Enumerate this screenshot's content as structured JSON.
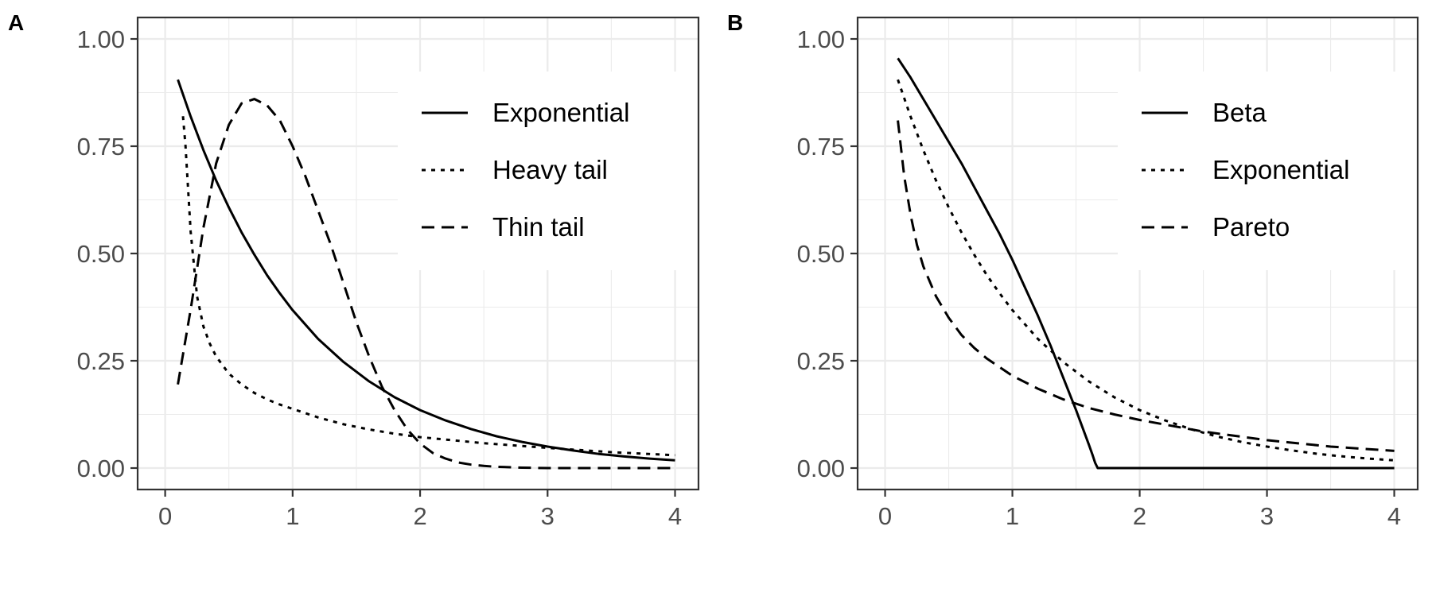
{
  "chart_data": [
    {
      "panel": "A",
      "type": "line",
      "xlim": [
        0,
        4
      ],
      "ylim": [
        0,
        1
      ],
      "x_ticks": [
        "0",
        "1",
        "2",
        "3",
        "4"
      ],
      "y_ticks": [
        "0.00",
        "0.25",
        "0.50",
        "0.75",
        "1.00"
      ],
      "grid": true,
      "legend_position": "top-right",
      "series": [
        {
          "name": "Exponential",
          "linetype": "solid",
          "x": [
            0.1,
            0.2,
            0.3,
            0.4,
            0.5,
            0.6,
            0.7,
            0.8,
            0.9,
            1.0,
            1.2,
            1.4,
            1.6,
            1.8,
            2.0,
            2.2,
            2.4,
            2.6,
            2.8,
            3.0,
            3.2,
            3.4,
            3.6,
            3.8,
            4.0
          ],
          "y": [
            0.905,
            0.819,
            0.741,
            0.67,
            0.607,
            0.549,
            0.497,
            0.449,
            0.407,
            0.368,
            0.301,
            0.247,
            0.202,
            0.165,
            0.135,
            0.111,
            0.091,
            0.074,
            0.061,
            0.05,
            0.041,
            0.033,
            0.027,
            0.022,
            0.018
          ]
        },
        {
          "name": "Heavy tail",
          "linetype": "dotted",
          "x": [
            0.14,
            0.16,
            0.2,
            0.25,
            0.3,
            0.35,
            0.4,
            0.5,
            0.6,
            0.7,
            0.8,
            0.9,
            1.0,
            1.2,
            1.4,
            1.6,
            1.8,
            2.0,
            2.5,
            3.0,
            3.5,
            4.0
          ],
          "y": [
            0.82,
            0.75,
            0.55,
            0.4,
            0.33,
            0.29,
            0.26,
            0.22,
            0.195,
            0.175,
            0.16,
            0.148,
            0.138,
            0.118,
            0.102,
            0.09,
            0.08,
            0.072,
            0.058,
            0.047,
            0.037,
            0.03
          ]
        },
        {
          "name": "Thin tail",
          "linetype": "dashed",
          "x": [
            0.1,
            0.2,
            0.3,
            0.4,
            0.5,
            0.6,
            0.7,
            0.8,
            0.9,
            1.0,
            1.1,
            1.2,
            1.3,
            1.4,
            1.5,
            1.6,
            1.7,
            1.8,
            1.9,
            2.0,
            2.1,
            2.2,
            2.3,
            2.4,
            2.5,
            2.6,
            2.8,
            3.0,
            3.5,
            4.0
          ],
          "y": [
            0.195,
            0.37,
            0.56,
            0.71,
            0.8,
            0.85,
            0.86,
            0.845,
            0.81,
            0.75,
            0.68,
            0.6,
            0.52,
            0.43,
            0.34,
            0.26,
            0.19,
            0.135,
            0.09,
            0.057,
            0.035,
            0.022,
            0.013,
            0.008,
            0.005,
            0.003,
            0.001,
            0.0,
            0.0,
            0.0
          ]
        }
      ]
    },
    {
      "panel": "B",
      "type": "line",
      "xlim": [
        0,
        4
      ],
      "ylim": [
        0,
        1
      ],
      "x_ticks": [
        "0",
        "1",
        "2",
        "3",
        "4"
      ],
      "y_ticks": [
        "0.00",
        "0.25",
        "0.50",
        "0.75",
        "1.00"
      ],
      "grid": true,
      "legend_position": "top-right",
      "series": [
        {
          "name": "Beta",
          "linetype": "solid",
          "x": [
            0.1,
            0.2,
            0.3,
            0.4,
            0.5,
            0.6,
            0.7,
            0.8,
            0.9,
            1.0,
            1.1,
            1.2,
            1.3,
            1.4,
            1.5,
            1.55,
            1.6,
            1.63,
            1.65,
            1.67,
            1.8,
            2.0,
            2.5,
            3.0,
            3.5,
            4.0
          ],
          "y": [
            0.955,
            0.91,
            0.86,
            0.81,
            0.76,
            0.71,
            0.655,
            0.6,
            0.545,
            0.485,
            0.42,
            0.355,
            0.285,
            0.21,
            0.135,
            0.095,
            0.055,
            0.03,
            0.012,
            0.0,
            0.0,
            0.0,
            0.0,
            0.0,
            0.0,
            0.0
          ]
        },
        {
          "name": "Exponential",
          "linetype": "dotted",
          "x": [
            0.1,
            0.2,
            0.3,
            0.4,
            0.5,
            0.6,
            0.7,
            0.8,
            0.9,
            1.0,
            1.2,
            1.4,
            1.6,
            1.8,
            2.0,
            2.2,
            2.4,
            2.6,
            2.8,
            3.0,
            3.2,
            3.4,
            3.6,
            3.8,
            4.0
          ],
          "y": [
            0.905,
            0.819,
            0.741,
            0.67,
            0.607,
            0.549,
            0.497,
            0.449,
            0.407,
            0.368,
            0.301,
            0.247,
            0.202,
            0.165,
            0.135,
            0.111,
            0.091,
            0.074,
            0.061,
            0.05,
            0.041,
            0.033,
            0.027,
            0.022,
            0.018
          ]
        },
        {
          "name": "Pareto",
          "linetype": "dashed",
          "x": [
            0.1,
            0.15,
            0.2,
            0.25,
            0.3,
            0.4,
            0.5,
            0.6,
            0.7,
            0.8,
            0.9,
            1.0,
            1.2,
            1.4,
            1.6,
            1.8,
            2.0,
            2.5,
            3.0,
            3.5,
            4.0
          ],
          "y": [
            0.81,
            0.68,
            0.59,
            0.52,
            0.47,
            0.4,
            0.35,
            0.31,
            0.28,
            0.255,
            0.235,
            0.215,
            0.185,
            0.16,
            0.14,
            0.125,
            0.112,
            0.085,
            0.065,
            0.05,
            0.04
          ]
        }
      ]
    }
  ]
}
